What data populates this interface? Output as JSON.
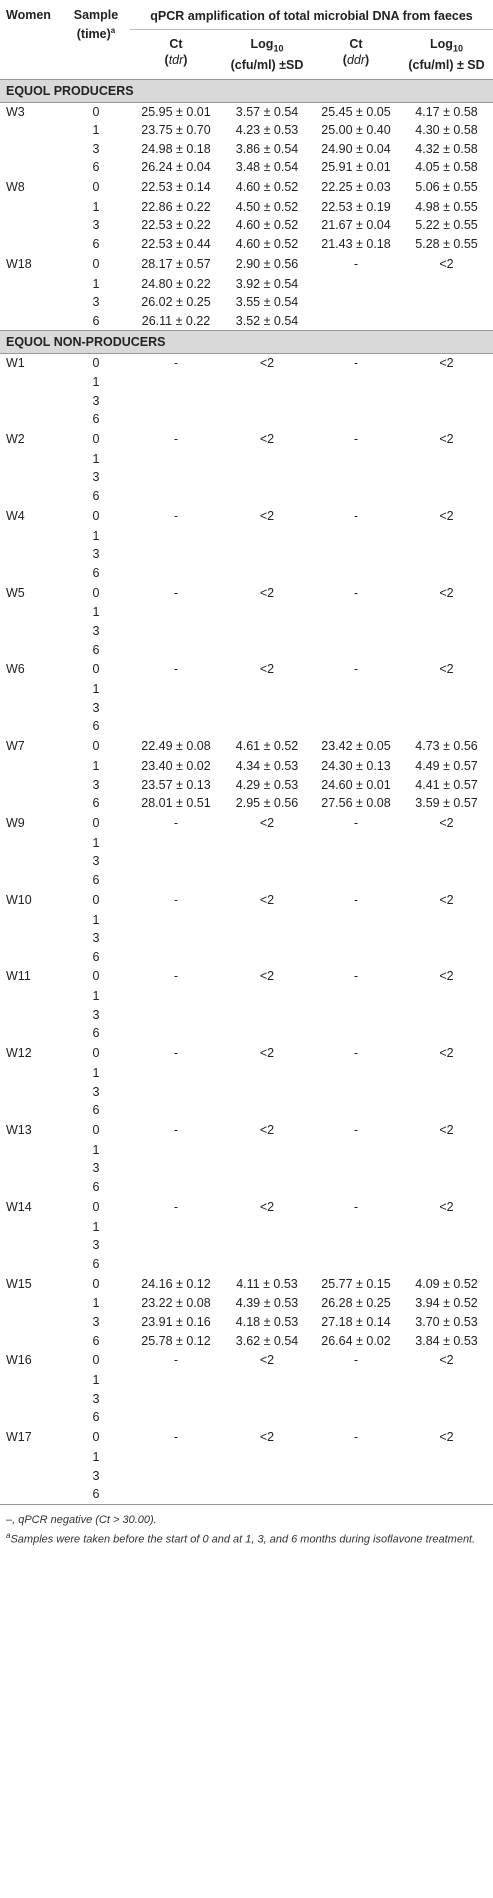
{
  "header": {
    "women": "Women",
    "sample_line1": "Sample",
    "sample_line2": "(time)",
    "sample_sup": "a",
    "span_title": "qPCR amplification of total microbial DNA from faeces",
    "ct_tdr_main": "Ct",
    "ct_tdr_sub": "tdr",
    "log_tdr_main": "Log",
    "log_tdr_subscript": "10",
    "log_tdr_line2": "(cfu/ml) ±SD",
    "ct_ddr_main": "Ct",
    "ct_ddr_sub": "ddr",
    "log_ddr_main": "Log",
    "log_ddr_subscript": "10",
    "log_ddr_line2": "(cfu/ml) ± SD"
  },
  "sections": [
    {
      "title": "EQUOL PRODUCERS",
      "subjects": [
        {
          "id": "W3",
          "rows": [
            {
              "t": "0",
              "ct_tdr": "25.95 ± 0.01",
              "log_tdr": "3.57 ± 0.54",
              "ct_ddr": "25.45 ± 0.05",
              "log_ddr": "4.17 ± 0.58"
            },
            {
              "t": "1",
              "ct_tdr": "23.75 ± 0.70",
              "log_tdr": "4.23 ± 0.53",
              "ct_ddr": "25.00 ± 0.40",
              "log_ddr": "4.30 ± 0.58"
            },
            {
              "t": "3",
              "ct_tdr": "24.98 ± 0.18",
              "log_tdr": "3.86 ± 0.54",
              "ct_ddr": "24.90 ± 0.04",
              "log_ddr": "4.32 ± 0.58"
            },
            {
              "t": "6",
              "ct_tdr": "26.24 ± 0.04",
              "log_tdr": "3.48 ± 0.54",
              "ct_ddr": "25.91 ± 0.01",
              "log_ddr": "4.05 ± 0.58"
            }
          ]
        },
        {
          "id": "W8",
          "rows": [
            {
              "t": "0",
              "ct_tdr": "22.53 ± 0.14",
              "log_tdr": "4.60 ± 0.52",
              "ct_ddr": "22.25 ± 0.03",
              "log_ddr": "5.06 ± 0.55"
            },
            {
              "t": "1",
              "ct_tdr": "22.86 ± 0.22",
              "log_tdr": "4.50 ± 0.52",
              "ct_ddr": "22.53 ± 0.19",
              "log_ddr": "4.98 ± 0.55"
            },
            {
              "t": "3",
              "ct_tdr": "22.53 ± 0.22",
              "log_tdr": "4.60 ± 0.52",
              "ct_ddr": "21.67 ± 0.04",
              "log_ddr": "5.22 ± 0.55"
            },
            {
              "t": "6",
              "ct_tdr": "22.53 ± 0.44",
              "log_tdr": "4.60 ± 0.52",
              "ct_ddr": "21.43 ± 0.18",
              "log_ddr": "5.28 ± 0.55"
            }
          ]
        },
        {
          "id": "W18",
          "rows": [
            {
              "t": "0",
              "ct_tdr": "28.17 ± 0.57",
              "log_tdr": "2.90 ± 0.56",
              "ct_ddr": "-",
              "log_ddr": "<2"
            },
            {
              "t": "1",
              "ct_tdr": "24.80 ± 0.22",
              "log_tdr": "3.92 ± 0.54",
              "ct_ddr": "",
              "log_ddr": ""
            },
            {
              "t": "3",
              "ct_tdr": "26.02 ± 0.25",
              "log_tdr": "3.55 ± 0.54",
              "ct_ddr": "",
              "log_ddr": ""
            },
            {
              "t": "6",
              "ct_tdr": "26.11 ± 0.22",
              "log_tdr": "3.52 ± 0.54",
              "ct_ddr": "",
              "log_ddr": ""
            }
          ]
        }
      ]
    },
    {
      "title": "EQUOL NON-PRODUCERS",
      "subjects": [
        {
          "id": "W1",
          "rows": [
            {
              "t": "0",
              "ct_tdr": "-",
              "log_tdr": "<2",
              "ct_ddr": "-",
              "log_ddr": "<2"
            },
            {
              "t": "1",
              "ct_tdr": "",
              "log_tdr": "",
              "ct_ddr": "",
              "log_ddr": ""
            },
            {
              "t": "3",
              "ct_tdr": "",
              "log_tdr": "",
              "ct_ddr": "",
              "log_ddr": ""
            },
            {
              "t": "6",
              "ct_tdr": "",
              "log_tdr": "",
              "ct_ddr": "",
              "log_ddr": ""
            }
          ]
        },
        {
          "id": "W2",
          "rows": [
            {
              "t": "0",
              "ct_tdr": "-",
              "log_tdr": "<2",
              "ct_ddr": "-",
              "log_ddr": "<2"
            },
            {
              "t": "1",
              "ct_tdr": "",
              "log_tdr": "",
              "ct_ddr": "",
              "log_ddr": ""
            },
            {
              "t": "3",
              "ct_tdr": "",
              "log_tdr": "",
              "ct_ddr": "",
              "log_ddr": ""
            },
            {
              "t": "6",
              "ct_tdr": "",
              "log_tdr": "",
              "ct_ddr": "",
              "log_ddr": ""
            }
          ]
        },
        {
          "id": "W4",
          "rows": [
            {
              "t": "0",
              "ct_tdr": "-",
              "log_tdr": "<2",
              "ct_ddr": "-",
              "log_ddr": "<2"
            },
            {
              "t": "1",
              "ct_tdr": "",
              "log_tdr": "",
              "ct_ddr": "",
              "log_ddr": ""
            },
            {
              "t": "3",
              "ct_tdr": "",
              "log_tdr": "",
              "ct_ddr": "",
              "log_ddr": ""
            },
            {
              "t": "6",
              "ct_tdr": "",
              "log_tdr": "",
              "ct_ddr": "",
              "log_ddr": ""
            }
          ]
        },
        {
          "id": "W5",
          "rows": [
            {
              "t": "0",
              "ct_tdr": "-",
              "log_tdr": "<2",
              "ct_ddr": "-",
              "log_ddr": "<2"
            },
            {
              "t": "1",
              "ct_tdr": "",
              "log_tdr": "",
              "ct_ddr": "",
              "log_ddr": ""
            },
            {
              "t": "3",
              "ct_tdr": "",
              "log_tdr": "",
              "ct_ddr": "",
              "log_ddr": ""
            },
            {
              "t": "6",
              "ct_tdr": "",
              "log_tdr": "",
              "ct_ddr": "",
              "log_ddr": ""
            }
          ]
        },
        {
          "id": "W6",
          "rows": [
            {
              "t": "0",
              "ct_tdr": "-",
              "log_tdr": "<2",
              "ct_ddr": "-",
              "log_ddr": "<2"
            },
            {
              "t": "1",
              "ct_tdr": "",
              "log_tdr": "",
              "ct_ddr": "",
              "log_ddr": ""
            },
            {
              "t": "3",
              "ct_tdr": "",
              "log_tdr": "",
              "ct_ddr": "",
              "log_ddr": ""
            },
            {
              "t": "6",
              "ct_tdr": "",
              "log_tdr": "",
              "ct_ddr": "",
              "log_ddr": ""
            }
          ]
        },
        {
          "id": "W7",
          "rows": [
            {
              "t": "0",
              "ct_tdr": "22.49 ± 0.08",
              "log_tdr": "4.61 ± 0.52",
              "ct_ddr": "23.42 ± 0.05",
              "log_ddr": "4.73 ± 0.56"
            },
            {
              "t": "1",
              "ct_tdr": "23.40 ± 0.02",
              "log_tdr": "4.34 ± 0.53",
              "ct_ddr": "24.30 ± 0.13",
              "log_ddr": "4.49 ± 0.57"
            },
            {
              "t": "3",
              "ct_tdr": "23.57 ± 0.13",
              "log_tdr": "4.29 ± 0.53",
              "ct_ddr": "24.60 ± 0.01",
              "log_ddr": "4.41 ± 0.57"
            },
            {
              "t": "6",
              "ct_tdr": "28.01 ± 0.51",
              "log_tdr": "2.95 ± 0.56",
              "ct_ddr": "27.56 ± 0.08",
              "log_ddr": "3.59 ± 0.57"
            }
          ]
        },
        {
          "id": "W9",
          "rows": [
            {
              "t": "0",
              "ct_tdr": "-",
              "log_tdr": "<2",
              "ct_ddr": "-",
              "log_ddr": "<2"
            },
            {
              "t": "1",
              "ct_tdr": "",
              "log_tdr": "",
              "ct_ddr": "",
              "log_ddr": ""
            },
            {
              "t": "3",
              "ct_tdr": "",
              "log_tdr": "",
              "ct_ddr": "",
              "log_ddr": ""
            },
            {
              "t": "6",
              "ct_tdr": "",
              "log_tdr": "",
              "ct_ddr": "",
              "log_ddr": ""
            }
          ]
        },
        {
          "id": "W10",
          "rows": [
            {
              "t": "0",
              "ct_tdr": "-",
              "log_tdr": "<2",
              "ct_ddr": "-",
              "log_ddr": "<2"
            },
            {
              "t": "1",
              "ct_tdr": "",
              "log_tdr": "",
              "ct_ddr": "",
              "log_ddr": ""
            },
            {
              "t": "3",
              "ct_tdr": "",
              "log_tdr": "",
              "ct_ddr": "",
              "log_ddr": ""
            },
            {
              "t": "6",
              "ct_tdr": "",
              "log_tdr": "",
              "ct_ddr": "",
              "log_ddr": ""
            }
          ]
        },
        {
          "id": "W11",
          "rows": [
            {
              "t": "0",
              "ct_tdr": "-",
              "log_tdr": "<2",
              "ct_ddr": "-",
              "log_ddr": "<2"
            },
            {
              "t": "1",
              "ct_tdr": "",
              "log_tdr": "",
              "ct_ddr": "",
              "log_ddr": ""
            },
            {
              "t": "3",
              "ct_tdr": "",
              "log_tdr": "",
              "ct_ddr": "",
              "log_ddr": ""
            },
            {
              "t": "6",
              "ct_tdr": "",
              "log_tdr": "",
              "ct_ddr": "",
              "log_ddr": ""
            }
          ]
        },
        {
          "id": "W12",
          "rows": [
            {
              "t": "0",
              "ct_tdr": "-",
              "log_tdr": "<2",
              "ct_ddr": "-",
              "log_ddr": "<2"
            },
            {
              "t": "1",
              "ct_tdr": "",
              "log_tdr": "",
              "ct_ddr": "",
              "log_ddr": ""
            },
            {
              "t": "3",
              "ct_tdr": "",
              "log_tdr": "",
              "ct_ddr": "",
              "log_ddr": ""
            },
            {
              "t": "6",
              "ct_tdr": "",
              "log_tdr": "",
              "ct_ddr": "",
              "log_ddr": ""
            }
          ]
        },
        {
          "id": "W13",
          "rows": [
            {
              "t": "0",
              "ct_tdr": "-",
              "log_tdr": "<2",
              "ct_ddr": "-",
              "log_ddr": "<2"
            },
            {
              "t": "1",
              "ct_tdr": "",
              "log_tdr": "",
              "ct_ddr": "",
              "log_ddr": ""
            },
            {
              "t": "3",
              "ct_tdr": "",
              "log_tdr": "",
              "ct_ddr": "",
              "log_ddr": ""
            },
            {
              "t": "6",
              "ct_tdr": "",
              "log_tdr": "",
              "ct_ddr": "",
              "log_ddr": ""
            }
          ]
        },
        {
          "id": "W14",
          "rows": [
            {
              "t": "0",
              "ct_tdr": "-",
              "log_tdr": "<2",
              "ct_ddr": "-",
              "log_ddr": "<2"
            },
            {
              "t": "1",
              "ct_tdr": "",
              "log_tdr": "",
              "ct_ddr": "",
              "log_ddr": ""
            },
            {
              "t": "3",
              "ct_tdr": "",
              "log_tdr": "",
              "ct_ddr": "",
              "log_ddr": ""
            },
            {
              "t": "6",
              "ct_tdr": "",
              "log_tdr": "",
              "ct_ddr": "",
              "log_ddr": ""
            }
          ]
        },
        {
          "id": "W15",
          "rows": [
            {
              "t": "0",
              "ct_tdr": "24.16 ± 0.12",
              "log_tdr": "4.11 ± 0.53",
              "ct_ddr": "25.77 ± 0.15",
              "log_ddr": "4.09 ± 0.52"
            },
            {
              "t": "1",
              "ct_tdr": "23.22 ± 0.08",
              "log_tdr": "4.39 ± 0.53",
              "ct_ddr": "26.28 ± 0.25",
              "log_ddr": "3.94 ± 0.52"
            },
            {
              "t": "3",
              "ct_tdr": "23.91 ± 0.16",
              "log_tdr": "4.18 ± 0.53",
              "ct_ddr": "27.18 ± 0.14",
              "log_ddr": "3.70 ± 0.53"
            },
            {
              "t": "6",
              "ct_tdr": "25.78 ± 0.12",
              "log_tdr": "3.62 ± 0.54",
              "ct_ddr": "26.64 ± 0.02",
              "log_ddr": "3.84 ± 0.53"
            }
          ]
        },
        {
          "id": "W16",
          "rows": [
            {
              "t": "0",
              "ct_tdr": "-",
              "log_tdr": "<2",
              "ct_ddr": "-",
              "log_ddr": "<2"
            },
            {
              "t": "1",
              "ct_tdr": "",
              "log_tdr": "",
              "ct_ddr": "",
              "log_ddr": ""
            },
            {
              "t": "3",
              "ct_tdr": "",
              "log_tdr": "",
              "ct_ddr": "",
              "log_ddr": ""
            },
            {
              "t": "6",
              "ct_tdr": "",
              "log_tdr": "",
              "ct_ddr": "",
              "log_ddr": ""
            }
          ]
        },
        {
          "id": "W17",
          "rows": [
            {
              "t": "0",
              "ct_tdr": "-",
              "log_tdr": "<2",
              "ct_ddr": "-",
              "log_ddr": "<2"
            },
            {
              "t": "1",
              "ct_tdr": "",
              "log_tdr": "",
              "ct_ddr": "",
              "log_ddr": ""
            },
            {
              "t": "3",
              "ct_tdr": "",
              "log_tdr": "",
              "ct_ddr": "",
              "log_ddr": ""
            },
            {
              "t": "6",
              "ct_tdr": "",
              "log_tdr": "",
              "ct_ddr": "",
              "log_ddr": ""
            }
          ]
        }
      ]
    }
  ],
  "footnotes": {
    "dash_note": "–, qPCR negative (Ct > 30.00).",
    "sample_note_sup": "a",
    "sample_note": "Samples were taken before the start of 0 and at 1, 3, and 6 months during isoflavone treatment."
  }
}
